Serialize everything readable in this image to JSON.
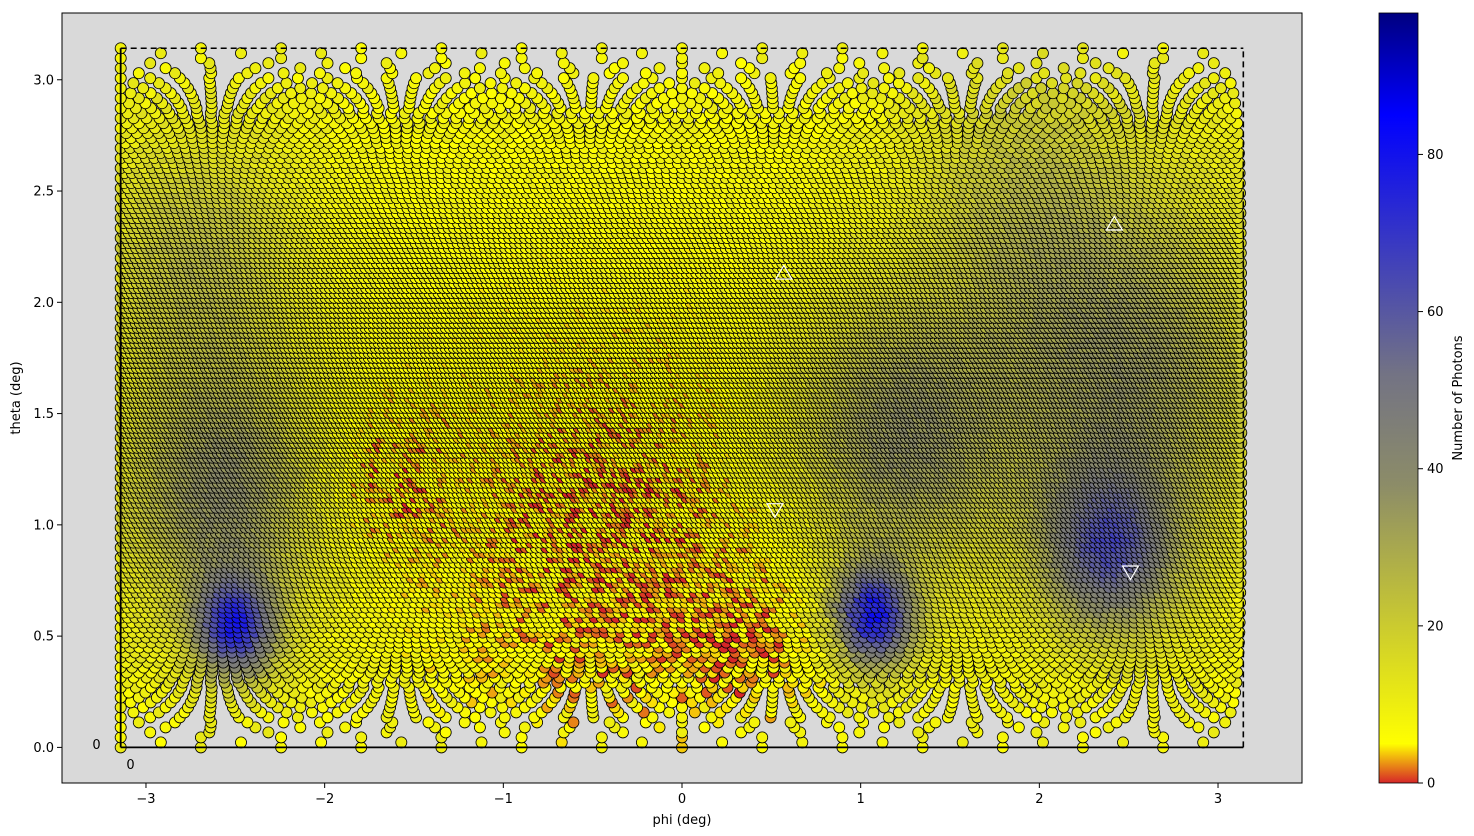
{
  "chart_data": {
    "type": "scatter",
    "title": "",
    "xlabel": "phi (deg)",
    "ylabel": "theta (deg)",
    "xlim": [
      -3.47,
      3.47
    ],
    "ylim": [
      -0.16,
      3.3
    ],
    "xticks": [
      -3,
      -2,
      -1,
      0,
      1,
      2,
      3
    ],
    "yticks": [
      0.0,
      0.5,
      1.0,
      1.5,
      2.0,
      2.5,
      3.0
    ],
    "xtick_labels": [
      "−3",
      "−2",
      "−1",
      "0",
      "1",
      "2",
      "3"
    ],
    "ytick_labels": [
      "0.0",
      "0.5",
      "1.0",
      "1.5",
      "2.0",
      "2.5",
      "3.0"
    ],
    "grid": false,
    "background_color": "#d9d9d9",
    "boundary": {
      "phi_range": [
        -3.1416,
        3.1416
      ],
      "theta_range": [
        0,
        3.1416
      ],
      "solid_edges": "left, bottom",
      "dashed_edges": "top, right"
    },
    "corner_labels": [
      {
        "text": "0",
        "x": -3.3,
        "y": 0.01
      },
      {
        "text": "0",
        "x": -3.11,
        "y": -0.08
      }
    ],
    "colorbar": {
      "label": "Number of Photons",
      "range": [
        0,
        98
      ],
      "ticks": [
        0,
        20,
        40,
        60,
        80
      ],
      "tick_labels": [
        "0",
        "20",
        "40",
        "60",
        "80"
      ],
      "colors": [
        {
          "value": 0,
          "color": "#d62728"
        },
        {
          "value": 5,
          "color": "#ffff00"
        },
        {
          "value": 38,
          "color": "#8c8c68"
        },
        {
          "value": 52,
          "color": "#737384"
        },
        {
          "value": 85,
          "color": "#0000ff"
        },
        {
          "value": 98,
          "color": "#000080"
        }
      ]
    },
    "markers": [
      {
        "symbol": "triangle-up",
        "phi": 0.57,
        "theta": 2.13,
        "color": "#ffffff"
      },
      {
        "symbol": "triangle-up",
        "phi": 2.42,
        "theta": 2.35,
        "color": "#ffffff"
      },
      {
        "symbol": "triangle-down",
        "phi": 0.52,
        "theta": 1.07,
        "color": "#ffffff"
      },
      {
        "symbol": "triangle-down",
        "phi": 2.51,
        "theta": 0.79,
        "color": "#ffffff"
      }
    ],
    "series": [
      {
        "description": "pixel grid, colored by photon count",
        "grid_rows": 140,
        "phi_range": [
          -3.1416,
          3.1416
        ],
        "theta_range": [
          0.0,
          3.1416
        ],
        "count_regions": [
          {
            "kind": "base",
            "count": 8
          },
          {
            "kind": "blob",
            "phi": -2.5,
            "theta": 0.55,
            "radius": 0.22,
            "count": 70
          },
          {
            "kind": "blob",
            "phi": -2.55,
            "theta": 1.15,
            "radius": 0.55,
            "count": 38
          },
          {
            "kind": "blob",
            "phi": -2.7,
            "theta": 2.2,
            "radius": 0.55,
            "count": 26
          },
          {
            "kind": "blob",
            "phi": 1.07,
            "theta": 0.6,
            "radius": 0.22,
            "count": 80
          },
          {
            "kind": "blob",
            "phi": 1.2,
            "theta": 1.4,
            "radius": 0.6,
            "count": 36
          },
          {
            "kind": "blob",
            "phi": 2.4,
            "theta": 0.9,
            "radius": 0.35,
            "count": 55
          },
          {
            "kind": "blob",
            "phi": 2.5,
            "theta": 1.7,
            "radius": 0.8,
            "count": 34
          },
          {
            "kind": "blob",
            "phi": 1.9,
            "theta": 2.5,
            "radius": 0.6,
            "count": 22
          },
          {
            "kind": "low",
            "phi": -0.4,
            "theta": 0.9,
            "radius": 0.9,
            "count": 1
          },
          {
            "kind": "low",
            "phi": -1.6,
            "theta": 1.2,
            "radius": 0.4,
            "count": 2
          },
          {
            "kind": "low",
            "phi": 0.3,
            "theta": 0.5,
            "radius": 0.45,
            "count": 1
          }
        ]
      }
    ]
  }
}
